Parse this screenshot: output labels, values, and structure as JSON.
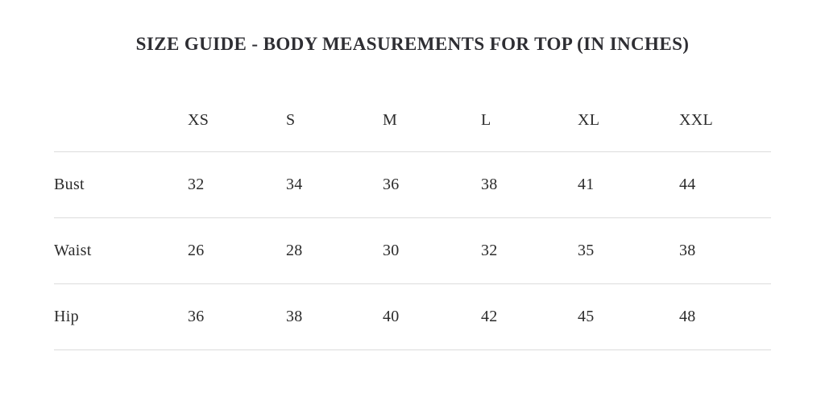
{
  "page": {
    "title": "SIZE GUIDE - BODY MEASUREMENTS FOR TOP (IN INCHES)"
  },
  "colors": {
    "text": "#2b2b2b",
    "title_text": "#2e2e33",
    "divider": "#dcdcdc",
    "background": "#ffffff"
  },
  "chart_data": {
    "type": "table",
    "title": "SIZE GUIDE - BODY MEASUREMENTS FOR TOP (IN INCHES)",
    "columns": [
      "XS",
      "S",
      "M",
      "L",
      "XL",
      "XXL"
    ],
    "rows": [
      {
        "label": "Bust",
        "values": [
          "32",
          "34",
          "36",
          "38",
          "41",
          "44"
        ]
      },
      {
        "label": "Waist",
        "values": [
          "26",
          "28",
          "30",
          "32",
          "35",
          "38"
        ]
      },
      {
        "label": "Hip",
        "values": [
          "36",
          "38",
          "40",
          "42",
          "45",
          "48"
        ]
      }
    ]
  }
}
